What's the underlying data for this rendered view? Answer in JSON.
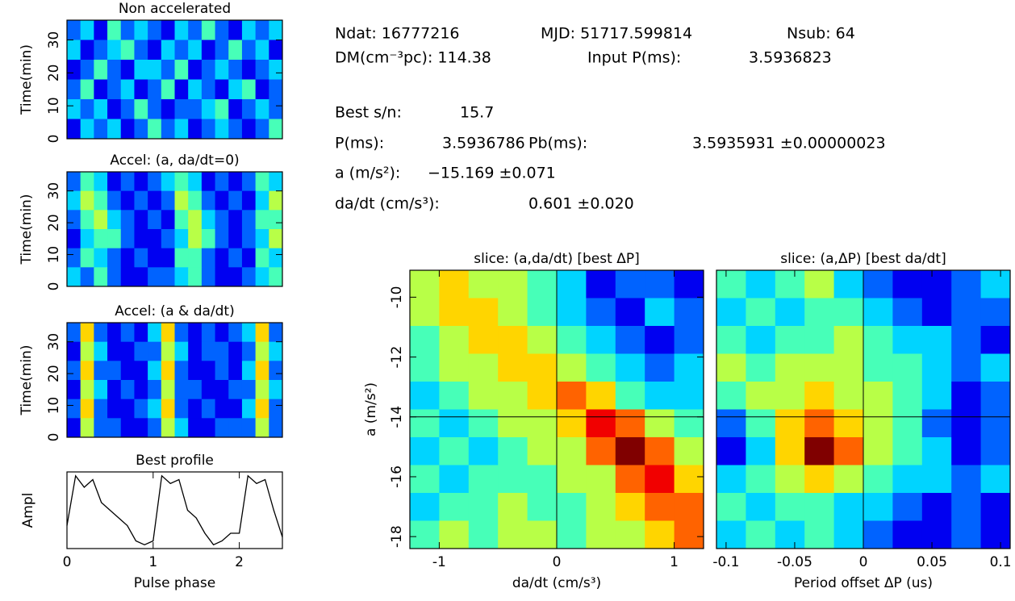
{
  "info": {
    "lines": [
      [
        "Ndat: 16777216",
        "MJD: 51717.599814",
        "Nsub:  64"
      ],
      [
        "DM(cm⁻³pc): 114.38",
        "Input P(ms):",
        "3.5936823"
      ],
      [
        "Best s/n:",
        "15.7"
      ],
      [
        "P(ms):",
        "3.5936786",
        "Pb(ms):",
        "3.5935931  ±0.00000023"
      ],
      [
        "a (m/s²):",
        "−15.169  ±0.071"
      ],
      [
        "da/dt (cm/s³):",
        "0.601  ±0.020"
      ]
    ]
  },
  "chart_data": [
    {
      "type": "heatmap",
      "title": "Non accelerated",
      "ylabel": "Time(min)",
      "ylim": [
        0,
        36
      ],
      "yticks": [
        0,
        10,
        20,
        30
      ],
      "zlim": [
        0,
        9
      ],
      "z": [
        [
          2,
          3,
          1,
          4,
          2,
          3,
          2,
          1,
          3,
          2,
          4,
          2,
          1,
          3,
          2,
          3
        ],
        [
          3,
          1,
          2,
          3,
          4,
          2,
          1,
          3,
          2,
          3,
          1,
          2,
          4,
          2,
          3,
          1
        ],
        [
          1,
          2,
          4,
          2,
          1,
          3,
          3,
          2,
          4,
          1,
          2,
          3,
          2,
          1,
          2,
          3
        ],
        [
          2,
          4,
          1,
          2,
          3,
          1,
          2,
          4,
          1,
          3,
          2,
          1,
          3,
          4,
          1,
          2
        ],
        [
          3,
          2,
          3,
          1,
          2,
          4,
          2,
          1,
          2,
          2,
          3,
          4,
          1,
          2,
          3,
          2
        ],
        [
          1,
          3,
          2,
          3,
          1,
          2,
          4,
          2,
          3,
          1,
          2,
          3,
          2,
          1,
          2,
          4
        ]
      ]
    },
    {
      "type": "heatmap",
      "title": "Accel: (a, da/dt=0)",
      "ylabel": "Time(min)",
      "ylim": [
        0,
        36
      ],
      "yticks": [
        0,
        10,
        20,
        30
      ],
      "zlim": [
        0,
        9
      ],
      "z": [
        [
          2,
          4,
          3,
          1,
          2,
          1,
          2,
          3,
          4,
          3,
          1,
          2,
          1,
          2,
          4,
          3
        ],
        [
          3,
          5,
          4,
          2,
          1,
          2,
          1,
          2,
          5,
          4,
          2,
          1,
          2,
          1,
          3,
          5
        ],
        [
          2,
          4,
          5,
          3,
          2,
          1,
          2,
          1,
          4,
          5,
          3,
          2,
          1,
          2,
          4,
          4
        ],
        [
          1,
          3,
          4,
          4,
          2,
          1,
          1,
          2,
          3,
          5,
          4,
          2,
          1,
          2,
          3,
          5
        ],
        [
          2,
          4,
          3,
          2,
          1,
          2,
          1,
          1,
          4,
          4,
          2,
          1,
          2,
          1,
          4,
          3
        ],
        [
          3,
          2,
          4,
          2,
          1,
          1,
          2,
          2,
          3,
          4,
          2,
          1,
          1,
          2,
          3,
          4
        ]
      ]
    },
    {
      "type": "heatmap",
      "title": "Accel: (a & da/dt)",
      "ylabel": "Time(min)",
      "ylim": [
        0,
        36
      ],
      "yticks": [
        0,
        10,
        20,
        30
      ],
      "zlim": [
        0,
        9
      ],
      "z": [
        [
          2,
          6,
          2,
          1,
          2,
          1,
          3,
          6,
          2,
          1,
          2,
          1,
          2,
          3,
          6,
          2
        ],
        [
          1,
          5,
          3,
          1,
          1,
          2,
          2,
          5,
          3,
          1,
          2,
          2,
          1,
          2,
          5,
          3
        ],
        [
          2,
          6,
          2,
          2,
          1,
          1,
          3,
          6,
          2,
          1,
          1,
          2,
          1,
          3,
          6,
          2
        ],
        [
          1,
          5,
          3,
          1,
          2,
          1,
          2,
          5,
          2,
          2,
          1,
          1,
          2,
          2,
          5,
          3
        ],
        [
          2,
          6,
          2,
          1,
          1,
          2,
          3,
          6,
          2,
          1,
          2,
          1,
          1,
          3,
          6,
          2
        ],
        [
          1,
          5,
          2,
          2,
          1,
          1,
          2,
          5,
          3,
          1,
          1,
          2,
          2,
          2,
          5,
          2
        ]
      ]
    },
    {
      "type": "line",
      "title": "Best profile",
      "ylabel": "Ampl",
      "xlabel": "Pulse phase",
      "xlim": [
        0,
        2.5
      ],
      "xticks": [
        0,
        1,
        2
      ],
      "ylim": [
        0,
        10
      ],
      "x": [
        0,
        0.1,
        0.2,
        0.3,
        0.4,
        0.5,
        0.6,
        0.7,
        0.8,
        0.9,
        1.0,
        1.1,
        1.2,
        1.3,
        1.4,
        1.5,
        1.6,
        1.7,
        1.8,
        1.9,
        2.0,
        2.1,
        2.2,
        2.3,
        2.4,
        2.5
      ],
      "y": [
        3,
        9.5,
        8,
        9,
        6,
        5,
        4,
        3,
        1,
        0.5,
        1,
        9.5,
        8.5,
        9,
        5,
        4,
        2,
        0.5,
        1,
        2,
        2,
        9.5,
        8.5,
        9,
        5,
        1.5
      ],
      "color": "#000000"
    },
    {
      "type": "heatmap",
      "title": "slice: (a,da/dt) [best ΔP]",
      "ylabel": "a (m/s²)",
      "xlabel": "da/dt (cm/s³)",
      "xlim": [
        -1.25,
        1.25
      ],
      "xticks": [
        -1,
        0,
        1
      ],
      "ylim": [
        -18.4,
        -9.1
      ],
      "yticks": [
        -10,
        -12,
        -14,
        -16,
        -18
      ],
      "zlim": [
        0,
        9
      ],
      "crosshair": {
        "x": 0,
        "y": -14.0
      },
      "z": [
        [
          5,
          6,
          5,
          5,
          4,
          3,
          1,
          2,
          2,
          1
        ],
        [
          5,
          6,
          6,
          5,
          4,
          3,
          2,
          1,
          3,
          2
        ],
        [
          4,
          5,
          6,
          6,
          5,
          4,
          3,
          2,
          1,
          2
        ],
        [
          4,
          5,
          5,
          6,
          6,
          5,
          4,
          3,
          2,
          3
        ],
        [
          3,
          4,
          5,
          5,
          6,
          7,
          6,
          4,
          3,
          3
        ],
        [
          4,
          3,
          4,
          5,
          5,
          6,
          8,
          7,
          5,
          4
        ],
        [
          3,
          4,
          3,
          4,
          5,
          5,
          7,
          9,
          7,
          5
        ],
        [
          4,
          3,
          4,
          4,
          4,
          5,
          5,
          7,
          8,
          6
        ],
        [
          3,
          4,
          4,
          5,
          4,
          4,
          5,
          6,
          7,
          7
        ],
        [
          4,
          5,
          4,
          5,
          5,
          4,
          5,
          5,
          6,
          7
        ]
      ]
    },
    {
      "type": "heatmap",
      "title": "slice: (a,ΔP) [best da/dt]",
      "xlabel": "Period offset ΔP (us)",
      "xlim": [
        -0.107,
        0.107
      ],
      "xticks": [
        -0.1,
        -0.05,
        0,
        0.05,
        0.1
      ],
      "ylim": [
        -18.4,
        -9.1
      ],
      "zlim": [
        0,
        9
      ],
      "crosshair": {
        "x": 0,
        "y": -14.0
      },
      "z": [
        [
          4,
          3,
          4,
          5,
          3,
          2,
          1,
          1,
          2,
          3
        ],
        [
          3,
          4,
          3,
          4,
          4,
          3,
          2,
          1,
          2,
          2
        ],
        [
          4,
          3,
          4,
          4,
          5,
          4,
          3,
          3,
          2,
          1
        ],
        [
          5,
          4,
          5,
          5,
          5,
          4,
          4,
          3,
          2,
          3
        ],
        [
          4,
          5,
          5,
          6,
          5,
          5,
          4,
          3,
          1,
          2
        ],
        [
          2,
          4,
          6,
          7,
          6,
          5,
          4,
          2,
          1,
          2
        ],
        [
          1,
          3,
          6,
          9,
          7,
          5,
          4,
          3,
          1,
          2
        ],
        [
          3,
          4,
          5,
          6,
          5,
          4,
          3,
          3,
          2,
          3
        ],
        [
          4,
          3,
          4,
          4,
          3,
          3,
          2,
          1,
          2,
          1
        ],
        [
          3,
          4,
          3,
          4,
          3,
          2,
          1,
          1,
          2,
          1
        ]
      ]
    }
  ]
}
